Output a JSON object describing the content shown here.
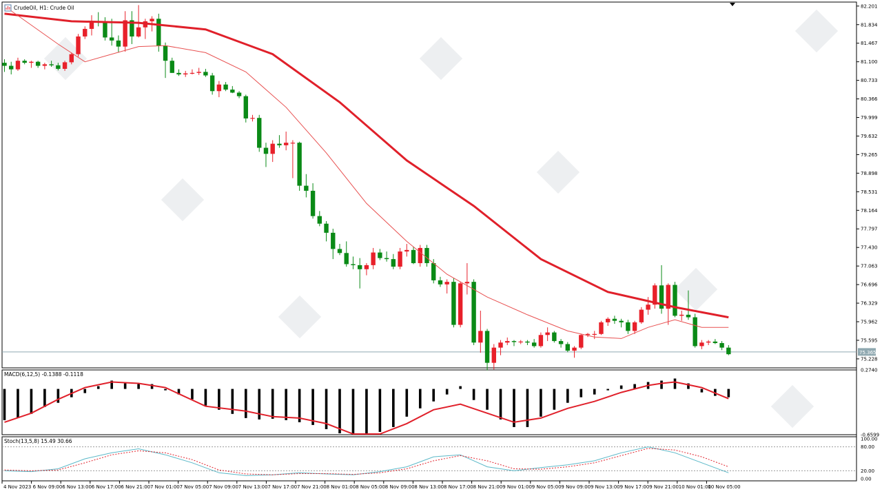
{
  "header": {
    "title": "CrudeOil, H1:  Crude Oil",
    "macd_label": "MACD(6,12,5) -0.1388 -0.1118",
    "stoch_label": "Stoch(13,5,8) 15.49 30.66",
    "current_price": "75.365"
  },
  "colors": {
    "bull": "#e8202a",
    "bear": "#0a8a16",
    "ma_slow": "#e0202a",
    "ma_fast": "#e85050",
    "macd_signal": "#e0202a",
    "macd_hist": "#000000",
    "stoch_main": "#5ab8c8",
    "stoch_signal": "#e0202a",
    "price_line": "#8fa8b0"
  },
  "chart_data": [
    {
      "type": "candlestick",
      "name": "price",
      "ylim": [
        75.05,
        82.28
      ],
      "y_ticks": [
        "82.201",
        "81.834",
        "81.467",
        "81.100",
        "80.733",
        "80.366",
        "79.999",
        "79.632",
        "79.265",
        "78.898",
        "78.531",
        "78.164",
        "77.797",
        "77.430",
        "77.063",
        "76.696",
        "76.329",
        "75.962",
        "75.595",
        "75.228"
      ],
      "x_ticks": [
        "4 Nov 2023",
        "6 Nov 09:00",
        "6 Nov 13:00",
        "6 Nov 17:00",
        "6 Nov 21:00",
        "7 Nov 01:00",
        "7 Nov 05:00",
        "7 Nov 09:00",
        "7 Nov 13:00",
        "7 Nov 17:00",
        "7 Nov 21:00",
        "8 Nov 01:00",
        "8 Nov 05:00",
        "8 Nov 09:00",
        "8 Nov 13:00",
        "8 Nov 17:00",
        "8 Nov 21:00",
        "9 Nov 01:00",
        "9 Nov 05:00",
        "9 Nov 09:00",
        "9 Nov 13:00",
        "9 Nov 17:00",
        "9 Nov 21:00",
        "10 Nov 01:00",
        "10 Nov 05:00"
      ],
      "current_price": 75.365,
      "ohlc": [
        [
          81.08,
          81.15,
          80.9,
          81.02
        ],
        [
          81.02,
          81.1,
          80.85,
          80.95
        ],
        [
          80.95,
          81.18,
          80.92,
          81.12
        ],
        [
          81.12,
          81.15,
          81.05,
          81.08
        ],
        [
          81.08,
          81.12,
          80.98,
          81.1
        ],
        [
          81.1,
          81.12,
          80.98,
          81.02
        ],
        [
          81.02,
          81.08,
          80.95,
          81.05
        ],
        [
          81.05,
          81.12,
          81.0,
          81.03
        ],
        [
          81.03,
          81.08,
          80.93,
          80.96
        ],
        [
          80.96,
          81.12,
          80.92,
          81.09
        ],
        [
          81.09,
          81.28,
          81.05,
          81.25
        ],
        [
          81.25,
          81.65,
          81.2,
          81.6
        ],
        [
          81.6,
          81.8,
          81.55,
          81.75
        ],
        [
          81.75,
          82.02,
          81.62,
          81.9
        ],
        [
          81.9,
          82.08,
          81.8,
          81.88
        ],
        [
          81.88,
          81.98,
          81.52,
          81.58
        ],
        [
          81.58,
          81.95,
          81.42,
          81.52
        ],
        [
          81.52,
          81.62,
          81.28,
          81.4
        ],
        [
          81.4,
          82.1,
          81.3,
          81.92
        ],
        [
          81.92,
          82.1,
          81.45,
          81.6
        ],
        [
          81.6,
          82.22,
          81.58,
          81.78
        ],
        [
          81.78,
          81.95,
          81.55,
          81.9
        ],
        [
          81.9,
          82.0,
          81.7,
          81.95
        ],
        [
          81.95,
          82.05,
          81.3,
          81.42
        ],
        [
          81.42,
          81.48,
          80.78,
          81.12
        ],
        [
          81.12,
          81.18,
          80.88,
          80.88
        ],
        [
          80.88,
          80.95,
          80.82,
          80.85
        ],
        [
          80.85,
          80.92,
          80.8,
          80.87
        ],
        [
          80.87,
          80.95,
          80.85,
          80.88
        ],
        [
          80.88,
          80.98,
          80.84,
          80.9
        ],
        [
          80.9,
          80.96,
          80.8,
          80.83
        ],
        [
          80.83,
          80.88,
          80.45,
          80.52
        ],
        [
          80.52,
          80.72,
          80.4,
          80.65
        ],
        [
          80.65,
          80.7,
          80.52,
          80.55
        ],
        [
          80.55,
          80.62,
          80.48,
          80.49
        ],
        [
          80.49,
          80.52,
          80.38,
          80.42
        ],
        [
          80.42,
          80.45,
          79.9,
          79.98
        ],
        [
          79.98,
          80.05,
          79.92,
          79.99
        ],
        [
          79.99,
          80.05,
          79.32,
          79.4
        ],
        [
          79.4,
          79.5,
          79.02,
          79.28
        ],
        [
          79.28,
          79.55,
          79.12,
          79.48
        ],
        [
          79.48,
          79.65,
          79.4,
          79.45
        ],
        [
          79.45,
          79.72,
          79.35,
          79.5
        ],
        [
          79.5,
          79.55,
          78.8,
          79.5
        ],
        [
          79.5,
          79.52,
          78.55,
          78.65
        ],
        [
          78.65,
          78.88,
          78.42,
          78.55
        ],
        [
          78.55,
          78.7,
          78.0,
          78.05
        ],
        [
          78.05,
          78.15,
          77.85,
          77.9
        ],
        [
          77.9,
          77.95,
          77.55,
          77.72
        ],
        [
          77.72,
          77.8,
          77.2,
          77.4
        ],
        [
          77.4,
          77.5,
          77.28,
          77.32
        ],
        [
          77.32,
          77.55,
          77.05,
          77.1
        ],
        [
          77.1,
          77.25,
          77.0,
          77.08
        ],
        [
          77.08,
          77.22,
          76.62,
          77.0
        ],
        [
          77.0,
          77.12,
          76.88,
          77.08
        ],
        [
          77.08,
          77.42,
          77.0,
          77.33
        ],
        [
          77.33,
          77.4,
          77.18,
          77.22
        ],
        [
          77.22,
          77.35,
          77.15,
          77.2
        ],
        [
          77.2,
          77.3,
          77.0,
          77.05
        ],
        [
          77.05,
          77.42,
          77.0,
          77.35
        ],
        [
          77.35,
          77.5,
          77.25,
          77.38
        ],
        [
          77.38,
          77.45,
          77.1,
          77.12
        ],
        [
          77.12,
          77.48,
          77.05,
          77.42
        ],
        [
          77.42,
          77.48,
          77.05,
          77.12
        ],
        [
          77.12,
          77.2,
          76.72,
          76.78
        ],
        [
          76.78,
          76.85,
          76.65,
          76.7
        ],
        [
          76.7,
          76.8,
          76.52,
          76.75
        ],
        [
          76.75,
          76.82,
          75.85,
          75.9
        ],
        [
          75.9,
          76.75,
          75.85,
          76.72
        ],
        [
          76.72,
          77.12,
          76.5,
          76.75
        ],
        [
          76.75,
          76.8,
          75.5,
          75.55
        ],
        [
          75.55,
          76.18,
          75.35,
          75.78
        ],
        [
          75.78,
          75.82,
          75.0,
          75.15
        ],
        [
          75.15,
          75.52,
          75.02,
          75.45
        ],
        [
          75.45,
          75.6,
          75.3,
          75.55
        ],
        [
          75.55,
          75.65,
          75.5,
          75.58
        ],
        [
          75.58,
          75.6,
          75.48,
          75.56
        ],
        [
          75.56,
          75.6,
          75.52,
          75.57
        ],
        [
          75.57,
          75.6,
          75.5,
          75.55
        ],
        [
          75.55,
          75.62,
          75.45,
          75.48
        ],
        [
          75.48,
          75.75,
          75.45,
          75.7
        ],
        [
          75.7,
          75.85,
          75.58,
          75.75
        ],
        [
          75.75,
          75.78,
          75.55,
          75.58
        ],
        [
          75.58,
          75.62,
          75.45,
          75.52
        ],
        [
          75.52,
          75.56,
          75.36,
          75.39
        ],
        [
          75.39,
          75.48,
          75.25,
          75.45
        ],
        [
          75.45,
          75.72,
          75.42,
          75.7
        ],
        [
          75.7,
          75.74,
          75.66,
          75.72
        ],
        [
          75.72,
          75.78,
          75.62,
          75.72
        ],
        [
          75.72,
          75.98,
          75.7,
          75.95
        ],
        [
          75.95,
          76.05,
          75.88,
          76.02
        ],
        [
          76.02,
          76.08,
          75.92,
          75.98
        ],
        [
          75.98,
          76.02,
          75.85,
          75.95
        ],
        [
          75.95,
          76.0,
          75.72,
          75.78
        ],
        [
          75.78,
          75.98,
          75.72,
          75.95
        ],
        [
          75.95,
          76.25,
          75.92,
          76.2
        ],
        [
          76.2,
          76.45,
          76.1,
          76.3
        ],
        [
          76.3,
          76.72,
          76.22,
          76.68
        ],
        [
          76.68,
          77.08,
          76.12,
          76.22
        ],
        [
          76.22,
          76.72,
          75.9,
          76.69
        ],
        [
          76.69,
          76.75,
          76.05,
          76.08
        ],
        [
          76.08,
          76.18,
          75.98,
          76.1
        ],
        [
          76.1,
          76.58,
          76.0,
          76.05
        ],
        [
          76.05,
          76.12,
          75.45,
          75.48
        ],
        [
          75.48,
          75.6,
          75.42,
          75.55
        ],
        [
          75.55,
          75.6,
          75.5,
          75.57
        ],
        [
          75.57,
          75.62,
          75.52,
          75.54
        ],
        [
          75.54,
          75.58,
          75.4,
          75.45
        ],
        [
          75.45,
          75.5,
          75.3,
          75.32
        ]
      ]
    },
    {
      "type": "line",
      "name": "moving averages",
      "ylim": [
        75.05,
        82.28
      ],
      "series": [
        {
          "name": "",
          "role": "slow",
          "x": [
            0,
            10,
            20,
            30,
            40,
            50,
            60,
            70,
            80,
            90,
            100,
            108
          ],
          "values": [
            82.05,
            81.9,
            81.87,
            81.74,
            81.25,
            80.3,
            79.15,
            78.25,
            77.2,
            76.55,
            76.25,
            76.05
          ]
        },
        {
          "name": "",
          "role": "fast",
          "x": [
            0,
            8,
            12,
            16,
            20,
            24,
            30,
            36,
            42,
            48,
            54,
            60,
            66,
            72,
            78,
            84,
            88,
            92,
            96,
            100,
            104,
            108
          ],
          "values": [
            82.2,
            81.45,
            81.1,
            81.25,
            81.4,
            81.42,
            81.28,
            80.9,
            80.2,
            79.3,
            78.3,
            77.55,
            76.9,
            76.45,
            76.1,
            75.78,
            75.66,
            75.63,
            75.85,
            76.0,
            75.85,
            75.85
          ]
        }
      ]
    },
    {
      "type": "bar",
      "name": "MACD",
      "ylim": [
        -0.6599,
        0.274
      ],
      "y_ticks": [
        "0.2740",
        "-0.6599"
      ],
      "histogram_x": [
        0,
        2,
        4,
        6,
        8,
        10,
        12,
        14,
        16,
        18,
        20,
        22,
        24,
        26,
        28,
        30,
        32,
        34,
        36,
        38,
        40,
        42,
        44,
        46,
        48,
        50,
        52,
        54,
        56,
        58,
        60,
        62,
        64,
        66,
        68,
        70,
        72,
        74,
        76,
        78,
        80,
        82,
        84,
        86,
        88,
        90,
        92,
        94,
        96,
        98,
        100,
        102,
        104,
        106,
        108
      ],
      "histogram": [
        -0.45,
        -0.42,
        -0.36,
        -0.26,
        -0.2,
        -0.12,
        -0.06,
        0.04,
        0.12,
        0.08,
        0.07,
        0.07,
        -0.02,
        -0.08,
        -0.15,
        -0.24,
        -0.3,
        -0.36,
        -0.42,
        -0.44,
        -0.43,
        -0.45,
        -0.48,
        -0.52,
        -0.58,
        -0.64,
        -0.66,
        -0.65,
        -0.62,
        -0.55,
        -0.4,
        -0.28,
        -0.18,
        -0.08,
        0.04,
        -0.16,
        -0.3,
        -0.44,
        -0.55,
        -0.55,
        -0.4,
        -0.3,
        -0.2,
        -0.12,
        -0.08,
        -0.02,
        0.05,
        0.07,
        0.1,
        0.12,
        0.15,
        0.08,
        -0.05,
        -0.1,
        -0.12
      ],
      "signal_x": [
        0,
        4,
        8,
        12,
        16,
        20,
        24,
        30,
        36,
        40,
        44,
        48,
        52,
        56,
        60,
        64,
        68,
        72,
        76,
        80,
        84,
        88,
        92,
        96,
        98,
        100,
        104,
        108
      ],
      "signal": [
        -0.48,
        -0.35,
        -0.15,
        0.02,
        0.1,
        0.08,
        0.02,
        -0.25,
        -0.32,
        -0.4,
        -0.42,
        -0.5,
        -0.65,
        -0.65,
        -0.5,
        -0.3,
        -0.22,
        -0.35,
        -0.48,
        -0.42,
        -0.28,
        -0.18,
        -0.05,
        0.05,
        0.08,
        0.1,
        0.02,
        -0.14
      ]
    },
    {
      "type": "line",
      "name": "Stochastic",
      "ylim": [
        0,
        100
      ],
      "y_ticks": [
        "100.00",
        "80.00",
        "20.00",
        "0.00"
      ],
      "levels": [
        80,
        20
      ],
      "series": [
        {
          "name": "",
          "role": "main",
          "x": [
            0,
            4,
            8,
            12,
            16,
            20,
            24,
            28,
            32,
            36,
            40,
            44,
            48,
            52,
            56,
            60,
            64,
            68,
            72,
            76,
            80,
            84,
            88,
            92,
            96,
            100,
            104,
            108
          ],
          "values": [
            20,
            18,
            25,
            50,
            65,
            75,
            60,
            40,
            15,
            8,
            10,
            15,
            12,
            10,
            18,
            30,
            55,
            60,
            30,
            20,
            28,
            35,
            45,
            65,
            80,
            65,
            40,
            15
          ]
        },
        {
          "name": "",
          "role": "signal",
          "x": [
            0,
            4,
            8,
            12,
            16,
            20,
            24,
            28,
            32,
            36,
            40,
            44,
            48,
            52,
            56,
            60,
            64,
            68,
            72,
            76,
            80,
            84,
            88,
            92,
            96,
            100,
            104,
            108
          ],
          "values": [
            22,
            20,
            22,
            40,
            60,
            70,
            65,
            48,
            22,
            12,
            10,
            13,
            13,
            11,
            15,
            25,
            45,
            58,
            45,
            25,
            24,
            30,
            40,
            58,
            76,
            72,
            55,
            30
          ]
        }
      ]
    }
  ]
}
